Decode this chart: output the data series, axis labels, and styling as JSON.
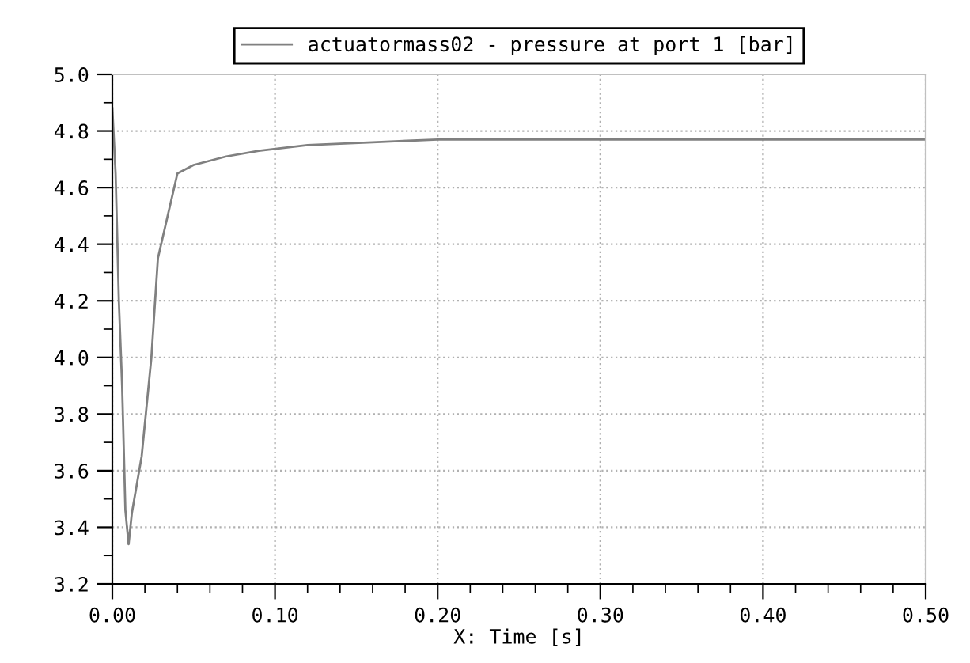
{
  "chart_data": {
    "type": "line",
    "xlabel": "X: Time [s]",
    "x": [
      0,
      0.002,
      0.004,
      0.006,
      0.008,
      0.01,
      0.012,
      0.018,
      0.024,
      0.028,
      0.032,
      0.04,
      0.05,
      0.07,
      0.09,
      0.12,
      0.16,
      0.2,
      0.25,
      0.5
    ],
    "series": [
      {
        "name": "actuatormass02 - pressure at port 1 [bar]",
        "color": "#808080",
        "values": [
          4.88,
          4.65,
          4.2,
          3.9,
          3.46,
          3.34,
          3.45,
          3.65,
          4.0,
          4.35,
          4.45,
          4.65,
          4.68,
          4.71,
          4.73,
          4.75,
          4.76,
          4.77,
          4.77,
          4.77
        ]
      }
    ],
    "xlim": [
      0,
      0.5
    ],
    "ylim": [
      3.2,
      5.0
    ],
    "xticks": [
      {
        "value": 0,
        "label": "0.00"
      },
      {
        "value": 0.1,
        "label": "0.10"
      },
      {
        "value": 0.2,
        "label": "0.20"
      },
      {
        "value": 0.3,
        "label": "0.30"
      },
      {
        "value": 0.4,
        "label": "0.40"
      },
      {
        "value": 0.5,
        "label": "0.50"
      }
    ],
    "yticks": [
      {
        "value": 3.2,
        "label": "3.2"
      },
      {
        "value": 3.4,
        "label": "3.4"
      },
      {
        "value": 3.6,
        "label": "3.6"
      },
      {
        "value": 3.8,
        "label": "3.8"
      },
      {
        "value": 4.0,
        "label": "4.0"
      },
      {
        "value": 4.2,
        "label": "4.2"
      },
      {
        "value": 4.4,
        "label": "4.4"
      },
      {
        "value": 4.6,
        "label": "4.6"
      },
      {
        "value": 4.8,
        "label": "4.8"
      },
      {
        "value": 5.0,
        "label": "5.0"
      }
    ],
    "grid": true,
    "legend": "top",
    "line_style": "solid"
  }
}
